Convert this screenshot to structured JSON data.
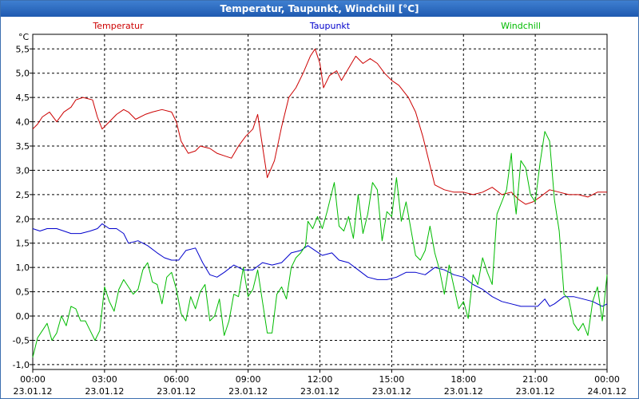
{
  "window": {
    "title": "Temperatur, Taupunkt, Windchill [°C]"
  },
  "chart_data": {
    "type": "line",
    "title": "Temperatur, Taupunkt, Windchill [°C]",
    "ylabel": "°C",
    "ylim": [
      -1.1,
      5.8
    ],
    "xlim": [
      0,
      24
    ],
    "grid": true,
    "legend": "top",
    "y_ticks": [
      "-1,0",
      "-0,5",
      "0,0",
      "0,5",
      "1,0",
      "1,5",
      "2,0",
      "2,5",
      "3,0",
      "3,5",
      "4,0",
      "4,5",
      "5,0",
      "5,5"
    ],
    "y_tick_values": [
      -1.0,
      -0.5,
      0.0,
      0.5,
      1.0,
      1.5,
      2.0,
      2.5,
      3.0,
      3.5,
      4.0,
      4.5,
      5.0,
      5.5
    ],
    "x_ticks": [
      {
        "time": "00:00",
        "date": "23.01.12",
        "hour": 0
      },
      {
        "time": "03:00",
        "date": "23.01.12",
        "hour": 3
      },
      {
        "time": "06:00",
        "date": "23.01.12",
        "hour": 6
      },
      {
        "time": "09:00",
        "date": "23.01.12",
        "hour": 9
      },
      {
        "time": "12:00",
        "date": "23.01.12",
        "hour": 12
      },
      {
        "time": "15:00",
        "date": "23.01.12",
        "hour": 15
      },
      {
        "time": "18:00",
        "date": "23.01.12",
        "hour": 18
      },
      {
        "time": "21:00",
        "date": "23.01.12",
        "hour": 21
      },
      {
        "time": "00:00",
        "date": "24.01.12",
        "hour": 24
      }
    ],
    "series": [
      {
        "name": "Temperatur",
        "color": "#cc0000",
        "points": [
          [
            0.0,
            3.85
          ],
          [
            0.2,
            3.95
          ],
          [
            0.4,
            4.1
          ],
          [
            0.7,
            4.2
          ],
          [
            1.0,
            4.0
          ],
          [
            1.3,
            4.2
          ],
          [
            1.6,
            4.3
          ],
          [
            1.8,
            4.45
          ],
          [
            2.1,
            4.5
          ],
          [
            2.5,
            4.45
          ],
          [
            2.7,
            4.1
          ],
          [
            2.9,
            3.85
          ],
          [
            3.2,
            4.0
          ],
          [
            3.5,
            4.15
          ],
          [
            3.8,
            4.25
          ],
          [
            4.0,
            4.2
          ],
          [
            4.3,
            4.05
          ],
          [
            4.7,
            4.15
          ],
          [
            5.0,
            4.2
          ],
          [
            5.4,
            4.25
          ],
          [
            5.8,
            4.2
          ],
          [
            6.0,
            4.0
          ],
          [
            6.2,
            3.6
          ],
          [
            6.5,
            3.35
          ],
          [
            6.8,
            3.4
          ],
          [
            7.0,
            3.5
          ],
          [
            7.4,
            3.45
          ],
          [
            7.7,
            3.35
          ],
          [
            8.0,
            3.3
          ],
          [
            8.3,
            3.25
          ],
          [
            8.6,
            3.5
          ],
          [
            8.9,
            3.7
          ],
          [
            9.2,
            3.85
          ],
          [
            9.4,
            4.15
          ],
          [
            9.6,
            3.5
          ],
          [
            9.8,
            2.85
          ],
          [
            10.1,
            3.2
          ],
          [
            10.4,
            3.9
          ],
          [
            10.7,
            4.5
          ],
          [
            11.0,
            4.7
          ],
          [
            11.3,
            5.0
          ],
          [
            11.6,
            5.35
          ],
          [
            11.8,
            5.5
          ],
          [
            12.0,
            5.2
          ],
          [
            12.15,
            4.7
          ],
          [
            12.4,
            4.95
          ],
          [
            12.7,
            5.05
          ],
          [
            12.9,
            4.85
          ],
          [
            13.2,
            5.1
          ],
          [
            13.5,
            5.35
          ],
          [
            13.8,
            5.2
          ],
          [
            14.1,
            5.3
          ],
          [
            14.4,
            5.2
          ],
          [
            14.7,
            5.0
          ],
          [
            15.0,
            4.85
          ],
          [
            15.3,
            4.75
          ],
          [
            15.7,
            4.5
          ],
          [
            16.0,
            4.2
          ],
          [
            16.3,
            3.7
          ],
          [
            16.6,
            3.1
          ],
          [
            16.8,
            2.7
          ],
          [
            17.2,
            2.6
          ],
          [
            17.6,
            2.55
          ],
          [
            18.0,
            2.55
          ],
          [
            18.4,
            2.5
          ],
          [
            18.8,
            2.55
          ],
          [
            19.2,
            2.65
          ],
          [
            19.6,
            2.5
          ],
          [
            20.0,
            2.55
          ],
          [
            20.3,
            2.4
          ],
          [
            20.6,
            2.3
          ],
          [
            20.9,
            2.35
          ],
          [
            21.2,
            2.45
          ],
          [
            21.6,
            2.6
          ],
          [
            22.0,
            2.55
          ],
          [
            22.4,
            2.5
          ],
          [
            22.8,
            2.5
          ],
          [
            23.2,
            2.45
          ],
          [
            23.6,
            2.55
          ],
          [
            24.0,
            2.55
          ]
        ]
      },
      {
        "name": "Taupunkt",
        "color": "#0000cc",
        "points": [
          [
            0.0,
            1.8
          ],
          [
            0.3,
            1.75
          ],
          [
            0.6,
            1.8
          ],
          [
            1.0,
            1.8
          ],
          [
            1.3,
            1.75
          ],
          [
            1.6,
            1.7
          ],
          [
            2.0,
            1.7
          ],
          [
            2.4,
            1.75
          ],
          [
            2.7,
            1.8
          ],
          [
            2.9,
            1.9
          ],
          [
            3.2,
            1.8
          ],
          [
            3.5,
            1.8
          ],
          [
            3.8,
            1.7
          ],
          [
            4.0,
            1.5
          ],
          [
            4.4,
            1.55
          ],
          [
            4.8,
            1.45
          ],
          [
            5.2,
            1.3
          ],
          [
            5.5,
            1.2
          ],
          [
            5.8,
            1.15
          ],
          [
            6.1,
            1.15
          ],
          [
            6.4,
            1.35
          ],
          [
            6.8,
            1.4
          ],
          [
            7.1,
            1.1
          ],
          [
            7.4,
            0.85
          ],
          [
            7.7,
            0.8
          ],
          [
            8.0,
            0.9
          ],
          [
            8.4,
            1.05
          ],
          [
            8.8,
            0.95
          ],
          [
            9.2,
            0.95
          ],
          [
            9.6,
            1.1
          ],
          [
            10.0,
            1.05
          ],
          [
            10.4,
            1.1
          ],
          [
            10.8,
            1.3
          ],
          [
            11.2,
            1.35
          ],
          [
            11.5,
            1.45
          ],
          [
            11.8,
            1.35
          ],
          [
            12.1,
            1.25
          ],
          [
            12.5,
            1.3
          ],
          [
            12.8,
            1.15
          ],
          [
            13.2,
            1.1
          ],
          [
            13.6,
            0.95
          ],
          [
            14.0,
            0.8
          ],
          [
            14.4,
            0.75
          ],
          [
            14.8,
            0.75
          ],
          [
            15.2,
            0.8
          ],
          [
            15.6,
            0.9
          ],
          [
            16.0,
            0.9
          ],
          [
            16.4,
            0.85
          ],
          [
            16.8,
            1.0
          ],
          [
            17.2,
            0.95
          ],
          [
            17.6,
            0.85
          ],
          [
            18.0,
            0.8
          ],
          [
            18.4,
            0.65
          ],
          [
            18.8,
            0.55
          ],
          [
            19.2,
            0.4
          ],
          [
            19.6,
            0.3
          ],
          [
            20.0,
            0.25
          ],
          [
            20.4,
            0.2
          ],
          [
            20.8,
            0.2
          ],
          [
            21.1,
            0.2
          ],
          [
            21.4,
            0.35
          ],
          [
            21.6,
            0.2
          ],
          [
            21.8,
            0.25
          ],
          [
            22.2,
            0.4
          ],
          [
            22.6,
            0.4
          ],
          [
            23.0,
            0.35
          ],
          [
            23.4,
            0.3
          ],
          [
            23.8,
            0.2
          ],
          [
            24.0,
            0.25
          ]
        ]
      },
      {
        "name": "Windchill",
        "color": "#00bb00",
        "points": [
          [
            0.0,
            -0.85
          ],
          [
            0.2,
            -0.45
          ],
          [
            0.4,
            -0.3
          ],
          [
            0.6,
            -0.15
          ],
          [
            0.8,
            -0.5
          ],
          [
            1.0,
            -0.35
          ],
          [
            1.2,
            0.0
          ],
          [
            1.4,
            -0.2
          ],
          [
            1.6,
            0.2
          ],
          [
            1.8,
            0.15
          ],
          [
            2.0,
            -0.1
          ],
          [
            2.2,
            -0.1
          ],
          [
            2.4,
            -0.3
          ],
          [
            2.6,
            -0.5
          ],
          [
            2.8,
            -0.3
          ],
          [
            3.0,
            0.6
          ],
          [
            3.2,
            0.3
          ],
          [
            3.4,
            0.1
          ],
          [
            3.6,
            0.55
          ],
          [
            3.8,
            0.75
          ],
          [
            4.0,
            0.6
          ],
          [
            4.2,
            0.45
          ],
          [
            4.4,
            0.55
          ],
          [
            4.6,
            0.95
          ],
          [
            4.8,
            1.1
          ],
          [
            5.0,
            0.7
          ],
          [
            5.2,
            0.65
          ],
          [
            5.4,
            0.25
          ],
          [
            5.6,
            0.8
          ],
          [
            5.8,
            0.9
          ],
          [
            6.0,
            0.55
          ],
          [
            6.2,
            0.05
          ],
          [
            6.4,
            -0.1
          ],
          [
            6.6,
            0.4
          ],
          [
            6.8,
            0.15
          ],
          [
            7.0,
            0.5
          ],
          [
            7.2,
            0.65
          ],
          [
            7.4,
            -0.1
          ],
          [
            7.6,
            0.0
          ],
          [
            7.8,
            0.35
          ],
          [
            8.0,
            -0.4
          ],
          [
            8.2,
            -0.1
          ],
          [
            8.4,
            0.45
          ],
          [
            8.6,
            0.4
          ],
          [
            8.8,
            1.0
          ],
          [
            9.0,
            0.4
          ],
          [
            9.2,
            0.55
          ],
          [
            9.4,
            0.95
          ],
          [
            9.6,
            0.3
          ],
          [
            9.8,
            -0.35
          ],
          [
            10.0,
            -0.35
          ],
          [
            10.2,
            0.45
          ],
          [
            10.4,
            0.6
          ],
          [
            10.6,
            0.35
          ],
          [
            10.8,
            1.0
          ],
          [
            11.0,
            1.2
          ],
          [
            11.2,
            1.3
          ],
          [
            11.4,
            1.45
          ],
          [
            11.5,
            1.95
          ],
          [
            11.7,
            1.8
          ],
          [
            11.9,
            2.05
          ],
          [
            12.1,
            1.8
          ],
          [
            12.3,
            2.15
          ],
          [
            12.6,
            2.75
          ],
          [
            12.8,
            1.85
          ],
          [
            13.0,
            1.75
          ],
          [
            13.2,
            2.05
          ],
          [
            13.4,
            1.6
          ],
          [
            13.6,
            2.5
          ],
          [
            13.8,
            1.7
          ],
          [
            14.0,
            2.1
          ],
          [
            14.2,
            2.75
          ],
          [
            14.4,
            2.6
          ],
          [
            14.6,
            1.55
          ],
          [
            14.8,
            2.15
          ],
          [
            15.0,
            2.05
          ],
          [
            15.2,
            2.85
          ],
          [
            15.4,
            1.95
          ],
          [
            15.6,
            2.35
          ],
          [
            15.8,
            1.8
          ],
          [
            16.0,
            1.25
          ],
          [
            16.2,
            1.15
          ],
          [
            16.4,
            1.35
          ],
          [
            16.6,
            1.85
          ],
          [
            16.8,
            1.3
          ],
          [
            17.0,
            0.95
          ],
          [
            17.2,
            0.45
          ],
          [
            17.4,
            1.05
          ],
          [
            17.6,
            0.6
          ],
          [
            17.8,
            0.15
          ],
          [
            18.0,
            0.3
          ],
          [
            18.2,
            -0.05
          ],
          [
            18.4,
            0.85
          ],
          [
            18.6,
            0.65
          ],
          [
            18.8,
            1.2
          ],
          [
            19.0,
            0.9
          ],
          [
            19.2,
            0.65
          ],
          [
            19.4,
            2.1
          ],
          [
            19.6,
            2.35
          ],
          [
            19.8,
            2.6
          ],
          [
            20.0,
            3.35
          ],
          [
            20.1,
            2.55
          ],
          [
            20.2,
            2.1
          ],
          [
            20.4,
            3.2
          ],
          [
            20.6,
            3.05
          ],
          [
            20.8,
            2.5
          ],
          [
            21.0,
            2.35
          ],
          [
            21.2,
            3.15
          ],
          [
            21.4,
            3.8
          ],
          [
            21.6,
            3.6
          ],
          [
            21.8,
            2.4
          ],
          [
            22.0,
            1.75
          ],
          [
            22.2,
            0.45
          ],
          [
            22.4,
            0.35
          ],
          [
            22.6,
            -0.15
          ],
          [
            22.8,
            -0.3
          ],
          [
            23.0,
            -0.15
          ],
          [
            23.2,
            -0.4
          ],
          [
            23.4,
            0.3
          ],
          [
            23.6,
            0.6
          ],
          [
            23.8,
            -0.1
          ],
          [
            24.0,
            0.85
          ]
        ]
      }
    ]
  }
}
